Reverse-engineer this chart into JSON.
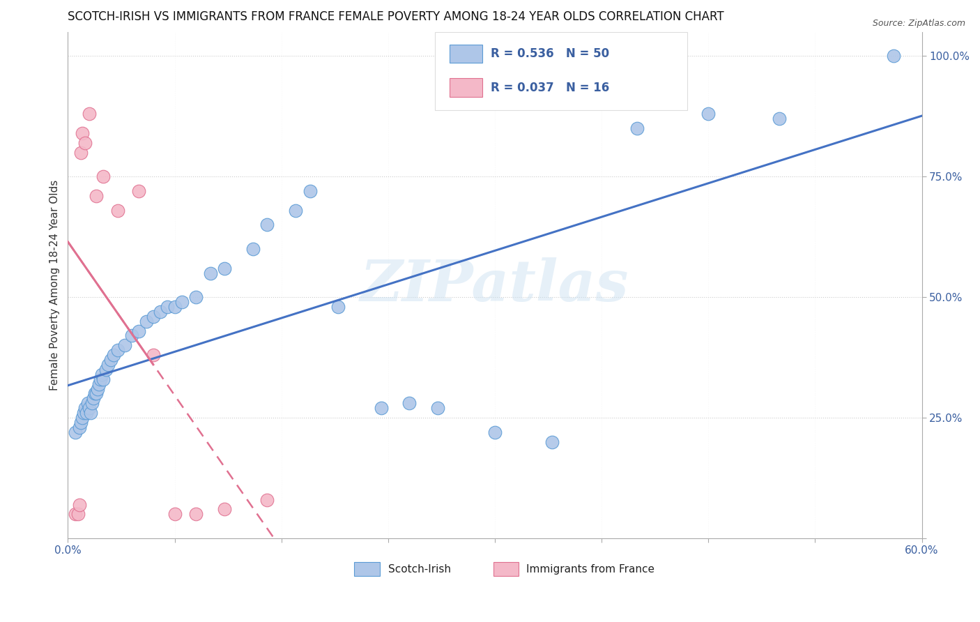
{
  "title": "SCOTCH-IRISH VS IMMIGRANTS FROM FRANCE FEMALE POVERTY AMONG 18-24 YEAR OLDS CORRELATION CHART",
  "source": "Source: ZipAtlas.com",
  "ylabel": "Female Poverty Among 18-24 Year Olds",
  "watermark": "ZIPatlas",
  "blue_scatter_color": "#aec6e8",
  "blue_edge_color": "#5b9bd5",
  "pink_scatter_color": "#f4b8c8",
  "pink_edge_color": "#e07090",
  "line_blue_color": "#4472c4",
  "line_pink_color": "#e07090",
  "legend_R_blue": "0.536",
  "legend_N_blue": "50",
  "legend_R_pink": "0.037",
  "legend_N_pink": "16",
  "scotch_irish_x": [
    0.5,
    0.8,
    0.9,
    1.0,
    1.1,
    1.2,
    1.3,
    1.4,
    1.5,
    1.6,
    1.7,
    1.8,
    1.9,
    2.0,
    2.1,
    2.2,
    2.3,
    2.4,
    2.5,
    2.7,
    2.8,
    3.0,
    3.2,
    3.5,
    4.0,
    4.5,
    5.0,
    5.5,
    6.0,
    6.5,
    7.0,
    7.5,
    8.0,
    9.0,
    10.0,
    11.0,
    13.0,
    14.0,
    16.0,
    17.0,
    19.0,
    22.0,
    24.0,
    26.0,
    30.0,
    34.0,
    40.0,
    45.0,
    50.0,
    58.0
  ],
  "scotch_irish_y": [
    22.0,
    23.0,
    24.0,
    25.0,
    26.0,
    27.0,
    26.0,
    28.0,
    27.0,
    26.0,
    28.0,
    29.0,
    30.0,
    30.0,
    31.0,
    32.0,
    33.0,
    34.0,
    33.0,
    35.0,
    36.0,
    37.0,
    38.0,
    39.0,
    40.0,
    42.0,
    43.0,
    45.0,
    46.0,
    47.0,
    48.0,
    48.0,
    49.0,
    50.0,
    55.0,
    56.0,
    60.0,
    65.0,
    68.0,
    72.0,
    48.0,
    27.0,
    28.0,
    27.0,
    22.0,
    20.0,
    85.0,
    88.0,
    87.0,
    100.0
  ],
  "france_x": [
    0.5,
    0.7,
    0.8,
    0.9,
    1.0,
    1.2,
    1.5,
    2.0,
    2.5,
    3.5,
    5.0,
    6.0,
    7.5,
    9.0,
    11.0,
    14.0
  ],
  "france_y": [
    5.0,
    5.0,
    7.0,
    80.0,
    84.0,
    82.0,
    88.0,
    71.0,
    75.0,
    68.0,
    72.0,
    38.0,
    5.0,
    5.0,
    6.0,
    8.0
  ]
}
